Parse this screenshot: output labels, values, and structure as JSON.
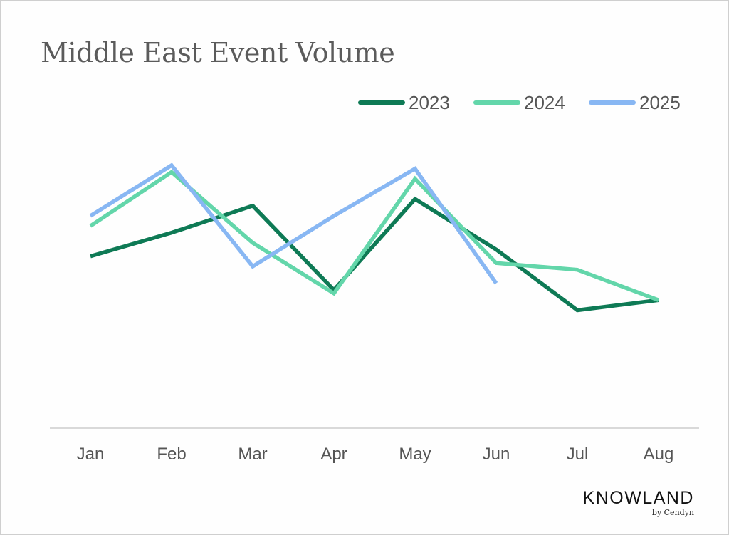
{
  "colors": {
    "series_2023": "#0e7a55",
    "series_2024": "#63d6aa",
    "series_2025": "#88b7f3",
    "axis": "#d9d9d9",
    "text": "#555555"
  },
  "chart_data": {
    "type": "line",
    "title": "Middle East Event Volume",
    "xlabel": "",
    "ylabel": "",
    "categories": [
      "Jan",
      "Feb",
      "Mar",
      "Apr",
      "May",
      "Jun",
      "Jul",
      "Aug"
    ],
    "y_axis_labels_visible": false,
    "ylim": [
      0,
      100
    ],
    "grid": false,
    "legend_position": "top-right",
    "series": [
      {
        "name": "2023",
        "color": "#0e7a55",
        "values": [
          51,
          58,
          66,
          41,
          68,
          53,
          35,
          38
        ]
      },
      {
        "name": "2024",
        "color": "#63d6aa",
        "values": [
          60,
          76,
          55,
          40,
          74,
          49,
          47,
          38
        ]
      },
      {
        "name": "2025",
        "color": "#88b7f3",
        "values": [
          63,
          78,
          48,
          63,
          77,
          43,
          null,
          null
        ]
      }
    ]
  },
  "logo": {
    "name": "KNOWLAND",
    "tagline": "by Cendyn"
  }
}
